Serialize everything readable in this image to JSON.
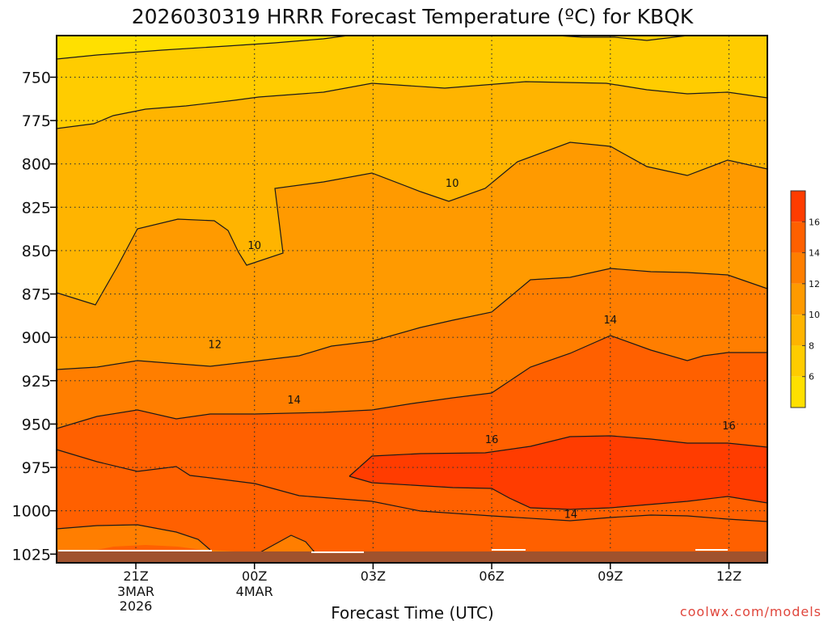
{
  "chart_data": {
    "type": "heatmap",
    "title": "2026030319 HRRR Forecast Temperature (ºC) for KBQK",
    "xlabel": "Forecast Time (UTC)",
    "ylabel": "",
    "y_scale": "pressure (hPa), inverted",
    "grid": true,
    "x_ticks": [
      {
        "label": "21Z",
        "sub": [
          "3MAR",
          "2026"
        ]
      },
      {
        "label": "00Z",
        "sub": [
          "4MAR"
        ]
      },
      {
        "label": "03Z",
        "sub": []
      },
      {
        "label": "06Z",
        "sub": []
      },
      {
        "label": "09Z",
        "sub": []
      },
      {
        "label": "12Z",
        "sub": []
      }
    ],
    "y_ticks": [
      750,
      775,
      800,
      825,
      850,
      875,
      900,
      925,
      950,
      975,
      1000,
      1025
    ],
    "ylim": [
      726,
      1030
    ],
    "legend": {
      "placement": "right",
      "levels": [
        6,
        8,
        10,
        12,
        14,
        16
      ],
      "colors": [
        "#ffe000",
        "#ffcc00",
        "#ffb400",
        "#ff9a00",
        "#ff7e00",
        "#ff6000",
        "#ff3c00"
      ]
    },
    "contour_labels": [
      {
        "text": "10",
        "hour": 0.0,
        "p": 847
      },
      {
        "text": "10",
        "hour": 5.0,
        "p": 811
      },
      {
        "text": "12",
        "hour": -1.0,
        "p": 904
      },
      {
        "text": "14",
        "hour": 1.0,
        "p": 936
      },
      {
        "text": "14",
        "hour": 9.0,
        "p": 890
      },
      {
        "text": "14",
        "hour": 8.0,
        "p": 1002
      },
      {
        "text": "16",
        "hour": 6.0,
        "p": 959
      },
      {
        "text": "16",
        "hour": 12.0,
        "p": 951
      }
    ],
    "credit": "coolwx.com/models"
  }
}
